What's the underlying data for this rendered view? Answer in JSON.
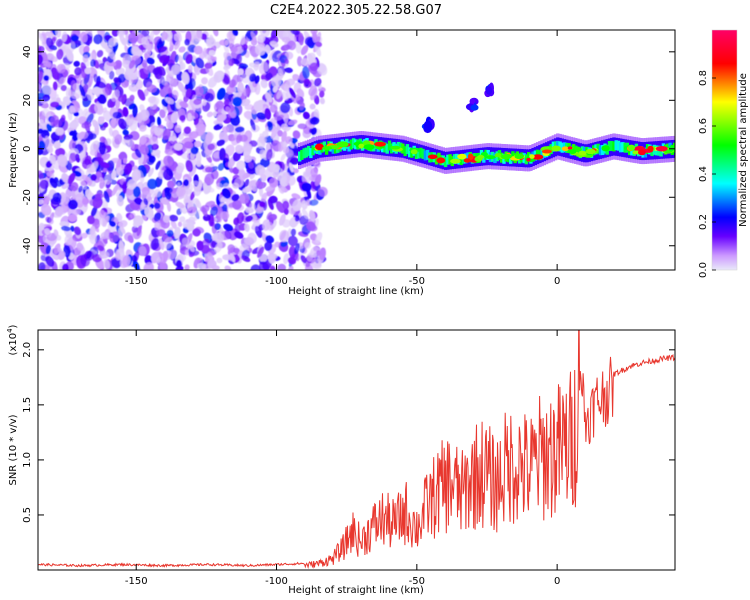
{
  "figure": {
    "title": "C2E4.2022.305.22.58.G07"
  },
  "chart_data": [
    {
      "type": "heatmap",
      "title": "C2E4.2022.305.22.58.G07",
      "xlabel": "Height of straight line (km)",
      "ylabel": "Frequency (Hz)",
      "xlim": [
        -185,
        42
      ],
      "ylim": [
        -50,
        49
      ],
      "xticks": [
        -150,
        -100,
        -50,
        0
      ],
      "yticks": [
        -40,
        -20,
        0,
        20,
        40
      ],
      "grid": false,
      "colorbar": {
        "label": "Normalized spectral amplitude",
        "range": [
          0,
          1
        ],
        "ticks": [
          0.0,
          0.2,
          0.4,
          0.6,
          0.8
        ],
        "tick_labels": [
          "0.0",
          "0.2",
          "0.4",
          "0.6",
          "0.8"
        ],
        "colormap": [
          "#e9e9f9",
          "#cc99ff",
          "#6600ff",
          "#0000ff",
          "#00ffff",
          "#00ff00",
          "#ffff00",
          "#ff0000",
          "#ff0066"
        ]
      },
      "features": [
        {
          "kind": "noise",
          "x_range": [
            -185,
            -87
          ],
          "f_range": [
            -50,
            49
          ],
          "amplitude_range": [
            0.02,
            0.25
          ]
        },
        {
          "kind": "band",
          "x_range": [
            -92,
            42
          ],
          "center_frequency_points": [
            [
              -92,
              -3
            ],
            [
              -85,
              0
            ],
            [
              -70,
              2
            ],
            [
              -55,
              0
            ],
            [
              -40,
              -5
            ],
            [
              -25,
              -3
            ],
            [
              -10,
              -4
            ],
            [
              0,
              1
            ],
            [
              10,
              -2
            ],
            [
              20,
              1
            ],
            [
              30,
              -1
            ],
            [
              42,
              0
            ]
          ],
          "amplitude_range": [
            0.3,
            0.95
          ]
        },
        {
          "kind": "harmonic",
          "points": [
            [
              -46,
              10
            ],
            [
              -30,
              18
            ],
            [
              -24,
              24
            ]
          ],
          "amplitude_range": [
            0.15,
            0.25
          ]
        }
      ]
    },
    {
      "type": "line",
      "xlabel": "Height of straight line (km)",
      "ylabel": "SNR (10 * v/v)",
      "y_multiplier_label": "(x10",
      "y_multiplier_exponent": "4",
      "y_multiplier_close": ")",
      "xlim": [
        -185,
        42
      ],
      "ylim": [
        0,
        2.18
      ],
      "xticks": [
        -150,
        -100,
        -50,
        0
      ],
      "yticks": [
        0.5,
        1.0,
        1.5,
        2.0
      ],
      "ytick_labels": [
        "0.5",
        "1.0",
        "1.5",
        "2.0"
      ],
      "grid": false,
      "series": [
        {
          "color": "#e8372e",
          "x": [
            -185,
            -170,
            -155,
            -140,
            -125,
            -110,
            -100,
            -90,
            -85,
            -80,
            -76,
            -73,
            -70,
            -66,
            -62,
            -58,
            -54,
            -50,
            -46,
            -42,
            -38,
            -34,
            -30,
            -26,
            -22,
            -18,
            -14,
            -10,
            -6,
            -2,
            2,
            6,
            8,
            10,
            14,
            18,
            22,
            26,
            30,
            34,
            38,
            42
          ],
          "y": [
            0.04,
            0.03,
            0.04,
            0.03,
            0.04,
            0.03,
            0.04,
            0.05,
            0.07,
            0.12,
            0.25,
            0.42,
            0.3,
            0.45,
            0.55,
            0.48,
            0.62,
            0.45,
            0.7,
            0.85,
            0.95,
            0.8,
            1.0,
            1.05,
            0.9,
            1.1,
            1.15,
            1.05,
            1.2,
            1.25,
            1.3,
            1.4,
            2.15,
            1.45,
            1.65,
            1.75,
            1.8,
            1.85,
            1.88,
            1.9,
            1.92,
            1.93
          ]
        }
      ]
    }
  ]
}
